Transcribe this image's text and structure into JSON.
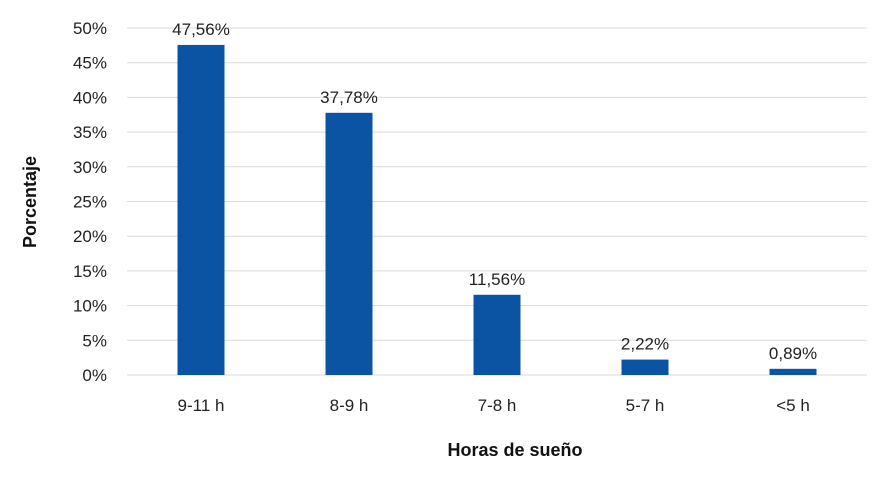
{
  "chart_data": {
    "type": "bar",
    "categories": [
      "9-11 h",
      "8-9 h",
      "7-8 h",
      "5-7 h",
      "<5 h"
    ],
    "values": [
      47.56,
      37.78,
      11.56,
      2.22,
      0.89
    ],
    "data_labels": [
      "47,56%",
      "37,78%",
      "11,56%",
      "2,22%",
      "0,89%"
    ],
    "title": "",
    "xlabel": "Horas de sueño",
    "ylabel": "Porcentaje",
    "ylim": [
      0,
      50
    ],
    "y_ticks": [
      "0%",
      "5%",
      "10%",
      "15%",
      "20%",
      "25%",
      "30%",
      "35%",
      "40%",
      "45%",
      "50%"
    ],
    "grid": true,
    "legend": "none",
    "bar_color": "#0b53a3"
  }
}
